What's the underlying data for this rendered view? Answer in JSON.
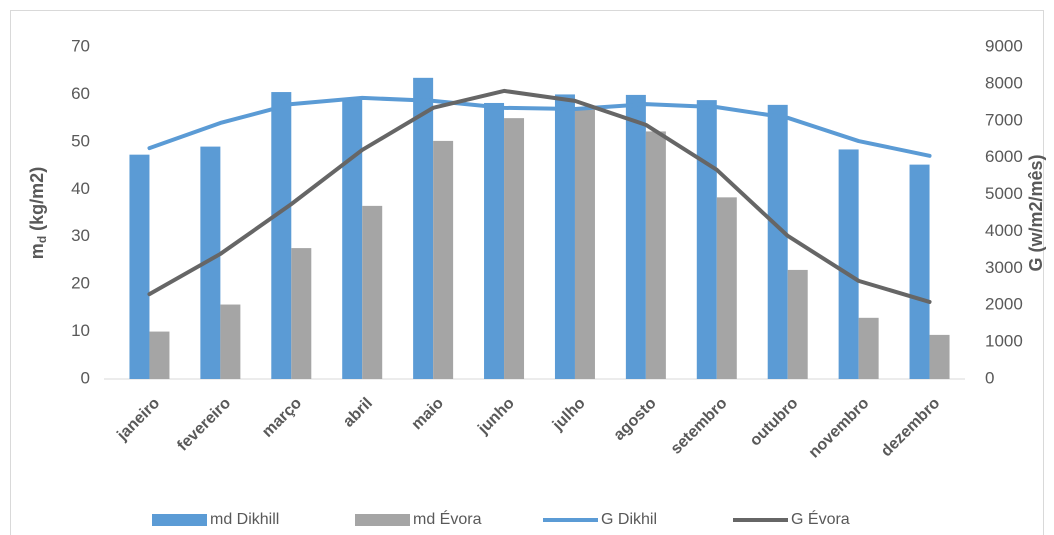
{
  "chart_data": {
    "type": "bar-line",
    "ylabel": [
      "m",
      "d",
      " (kg/m2)"
    ],
    "y2label": "G (w/m2/mês)",
    "categories": [
      "janeiro",
      "fevereiro",
      "março",
      "abril",
      "maio",
      "junho",
      "julho",
      "agosto",
      "setembro",
      "outubro",
      "novembro",
      "dezembro"
    ],
    "series": [
      {
        "name": "md Dikhill",
        "type": "bar",
        "color": "#5b9bd5",
        "values": [
          47.3,
          49,
          60.5,
          59.2,
          63.5,
          58.2,
          60,
          59.9,
          58.8,
          57.8,
          48.4,
          45.2
        ]
      },
      {
        "name": "md Évora",
        "type": "bar",
        "color": "#a5a5a5",
        "values": [
          10,
          15.7,
          27.6,
          36.5,
          50.2,
          55,
          56.8,
          52.2,
          38.3,
          23,
          12.9,
          9.3
        ]
      },
      {
        "name": "G Dikhil",
        "type": "line",
        "axis": "y2",
        "color": "#5b9bd5",
        "values": [
          6260,
          6940,
          7450,
          7620,
          7540,
          7350,
          7320,
          7450,
          7370,
          7080,
          6450,
          6050
        ]
      },
      {
        "name": "G Évora",
        "type": "line",
        "axis": "y2",
        "color": "#666666",
        "values": [
          2300,
          3390,
          4740,
          6210,
          7350,
          7810,
          7540,
          6890,
          5670,
          3880,
          2660,
          2090
        ]
      }
    ],
    "ylim": [
      0,
      70
    ],
    "yticks": [
      0,
      10,
      20,
      30,
      40,
      50,
      60,
      70
    ],
    "y2lim": [
      0,
      9000
    ],
    "y2ticks": [
      0,
      1000,
      2000,
      3000,
      4000,
      5000,
      6000,
      7000,
      8000,
      9000
    ],
    "grid": false,
    "legend": "bottom"
  }
}
